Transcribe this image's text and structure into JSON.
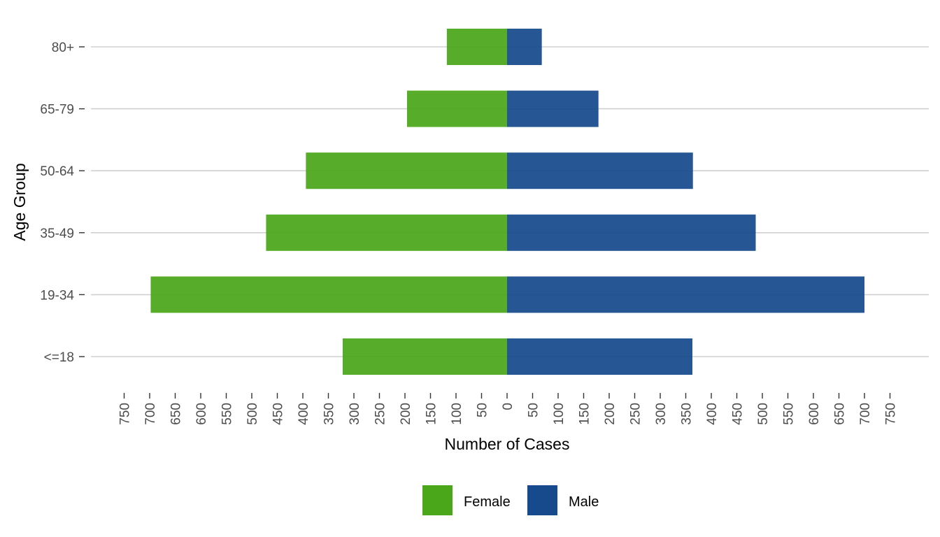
{
  "chart_data": {
    "type": "bar",
    "orientation": "horizontal",
    "layout": "population-pyramid",
    "categories": [
      "<=18",
      "19-34",
      "35-49",
      "50-64",
      "65-79",
      "80+"
    ],
    "series": [
      {
        "name": "Female",
        "values": [
          322,
          698,
          472,
          394,
          196,
          118
        ],
        "color": "#4aa719"
      },
      {
        "name": "Male",
        "values": [
          363,
          700,
          487,
          364,
          179,
          68
        ],
        "color": "#164a8c"
      }
    ],
    "xlabel": "Number of Cases",
    "ylabel": "Age Group",
    "xlim": [
      -750,
      750
    ],
    "x_ticks": [
      -750,
      -700,
      -650,
      -600,
      -550,
      -500,
      -450,
      -400,
      -350,
      -300,
      -250,
      -200,
      -150,
      -100,
      -50,
      0,
      50,
      100,
      150,
      200,
      250,
      300,
      350,
      400,
      450,
      500,
      550,
      600,
      650,
      700,
      750
    ],
    "x_tick_labels": [
      "750",
      "700",
      "650",
      "600",
      "550",
      "500",
      "450",
      "400",
      "350",
      "300",
      "250",
      "200",
      "150",
      "100",
      "50",
      "0",
      "50",
      "100",
      "150",
      "200",
      "250",
      "300",
      "350",
      "400",
      "450",
      "500",
      "550",
      "600",
      "650",
      "700",
      "750"
    ],
    "grid": "horizontal",
    "legend": {
      "position": "bottom",
      "entries": [
        "Female",
        "Male"
      ]
    }
  }
}
